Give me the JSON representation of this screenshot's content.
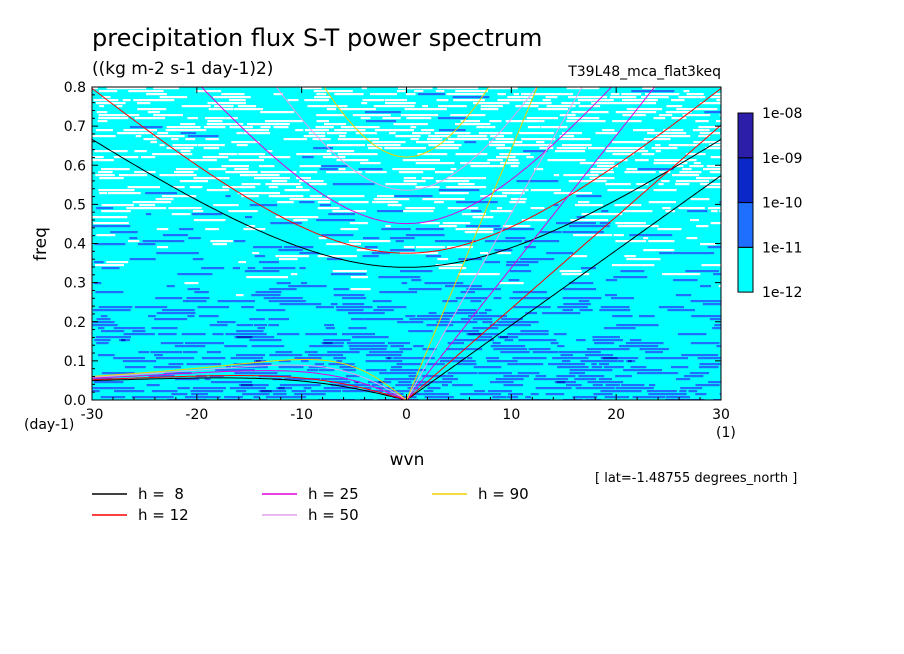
{
  "chart_data": {
    "type": "heatmap",
    "title": "precipitation flux S-T power spectrum",
    "units": "((kg m-2 s-1 day-1)2)",
    "run_id": "T39L48_mca_flat3keq",
    "xlabel": "wvn",
    "ylabel": "freq",
    "x_unit_label": "(1)",
    "y_unit_label": "(day-1)",
    "xlim": [
      -30,
      30
    ],
    "ylim": [
      0,
      0.8
    ],
    "x_ticks": [
      -30,
      -20,
      -10,
      0,
      10,
      20,
      30
    ],
    "x_tick_labels": [
      "-30",
      "-20",
      "-10",
      "0",
      "10",
      "20",
      "30"
    ],
    "y_ticks": [
      0,
      0.1,
      0.2,
      0.3,
      0.4,
      0.5,
      0.6,
      0.7,
      0.8
    ],
    "y_tick_labels": [
      "0.0",
      "0.1",
      "0.2",
      "0.3",
      "0.4",
      "0.5",
      "0.6",
      "0.7",
      "0.8"
    ],
    "colorbar": {
      "levels": [
        "1e-12",
        "1e-11",
        "1e-10",
        "1e-09",
        "1e-08"
      ],
      "colors": [
        "#00ffff",
        "#1e6eff",
        "#0a28c8",
        "#2d1eaa"
      ],
      "below_color": "#ffffff"
    },
    "heatmap_description_levels": {
      "dominant_band": "1e-12 to 1e-11 (cyan) over most of the domain",
      "enhanced_band": "1e-11 to 1e-10 (blue) concentrated at low frequency"
    },
    "dispersion_curves": [
      {
        "name": "h =  8",
        "equivalent_depth": 8,
        "color": "#000000"
      },
      {
        "name": "h = 12",
        "equivalent_depth": 12,
        "color": "#ff0000"
      },
      {
        "name": "h = 25",
        "equivalent_depth": 25,
        "color": "#e000e0"
      },
      {
        "name": "h = 50",
        "equivalent_depth": 50,
        "color": "#e4a0e8"
      },
      {
        "name": "h = 90",
        "equivalent_depth": 90,
        "color": "#f0d000"
      }
    ],
    "annotation": "[ lat=-1.48755 degrees_north ]"
  }
}
